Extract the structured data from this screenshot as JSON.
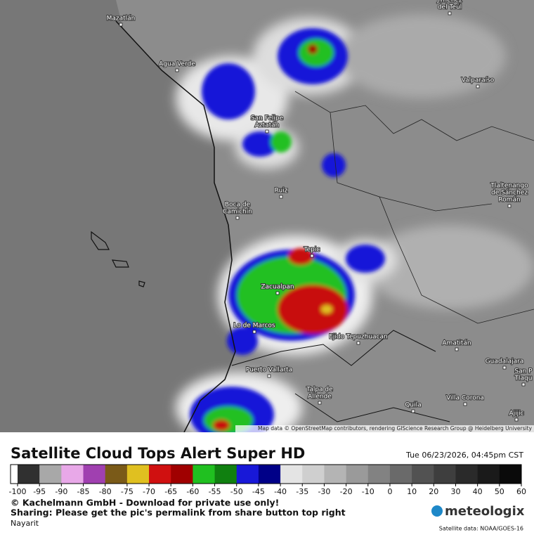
{
  "map": {
    "places": [
      [
        "Mazatlán"
      ],
      [
        "Jiménez",
        "del Teúl"
      ],
      [
        "Agua Verde"
      ],
      [
        "Valparaíso"
      ],
      [
        "San Felipe",
        "Aztatán"
      ],
      [
        "Ruiz"
      ],
      [
        "Boca de",
        "Camichín"
      ],
      [
        "Tlaltenango",
        "de Sánchez",
        "Román"
      ],
      [
        "Tepic"
      ],
      [
        "Zacualpan"
      ],
      [
        "Lo de Marcos"
      ],
      [
        "Ejido Tepuzhuacan"
      ],
      [
        "Amatitán"
      ],
      [
        "Puerto Vallarta"
      ],
      [
        "Guadalajara"
      ],
      [
        "San P",
        "Tlaqu"
      ],
      [
        "Talpa de",
        "Allende"
      ],
      [
        "Quila"
      ],
      [
        "Villa Corona"
      ],
      [
        "Ajijic"
      ]
    ],
    "attribution": "Map data © OpenStreetMap contributors, rendering GIScience Research Group @ Heidelberg University"
  },
  "header": {
    "title": "Satellite Cloud Tops Alert Super HD",
    "datetime": "Tue 06/23/2026, 04:45pm CST"
  },
  "colorbar": {
    "ticks": [
      -100,
      -95,
      -90,
      -85,
      -80,
      -75,
      -70,
      -65,
      -60,
      -55,
      -50,
      -45,
      -40,
      -35,
      -30,
      -20,
      -10,
      0,
      10,
      20,
      30,
      40,
      50,
      60
    ],
    "colors": [
      "#303030",
      "#a8a8a8",
      "#e8a8e8",
      "#a040b0",
      "#7a5a18",
      "#e0c020",
      "#d01010",
      "#a00000",
      "#20c020",
      "#108010",
      "#1818d8",
      "#000088",
      "#e4e4e4",
      "#cfcfcf",
      "#b4b4b4",
      "#9a9a9a",
      "#828282",
      "#6a6a6a",
      "#525252",
      "#3e3e3e",
      "#2a2a2a",
      "#1a1a1a",
      "#0a0a0a"
    ]
  },
  "footer": {
    "copyright": "© Kachelmann GmbH - Download for private use only!",
    "sharing": "Sharing: Please get the pic's permalink from share button top right",
    "region": "Nayarit",
    "brand": "meteologix",
    "source": "Satellite data: NOAA/GOES-16"
  }
}
